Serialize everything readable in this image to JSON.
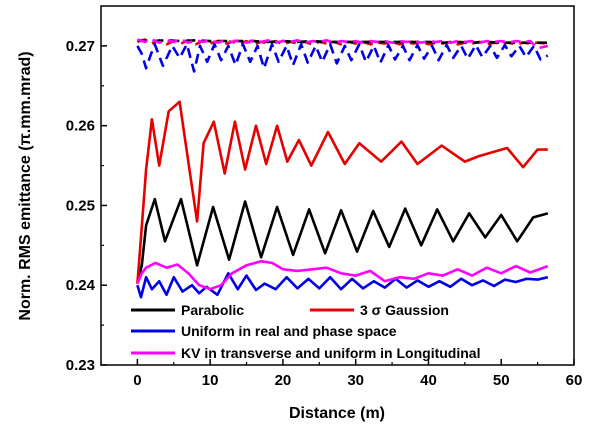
{
  "chart_data": {
    "type": "line",
    "xlabel": "Distance (m)",
    "ylabel": "Norm. RMS emittance (π.mm.mrad)",
    "xlim": [
      -5,
      60
    ],
    "ylim": [
      0.23,
      0.275
    ],
    "xticks": [
      0,
      10,
      20,
      30,
      40,
      50,
      60
    ],
    "yticks": [
      0.23,
      0.24,
      0.25,
      0.26,
      0.27
    ],
    "legend_position": "bottom-left",
    "grid": false,
    "series": [
      {
        "name": "Parabolic",
        "color": "#000000",
        "style": "solid",
        "x": [
          0,
          0.6,
          1.2,
          2.4,
          3.8,
          6.0,
          8.2,
          10.4,
          12.6,
          14.8,
          17.0,
          19.2,
          21.4,
          23.6,
          25.8,
          28.0,
          30.2,
          32.4,
          34.6,
          36.8,
          39.0,
          41.2,
          43.4,
          45.6,
          47.8,
          50.0,
          52.2,
          54.4,
          56.4
        ],
        "y": [
          0.2402,
          0.2425,
          0.2475,
          0.2508,
          0.2455,
          0.2508,
          0.2425,
          0.2498,
          0.2432,
          0.2505,
          0.2435,
          0.2498,
          0.2438,
          0.2495,
          0.244,
          0.2494,
          0.2442,
          0.2493,
          0.2448,
          0.2496,
          0.245,
          0.2495,
          0.2455,
          0.249,
          0.246,
          0.2488,
          0.2455,
          0.2485,
          0.249
        ]
      },
      {
        "name": "3 σ Gaussion",
        "color": "#e60000",
        "style": "solid",
        "x": [
          0,
          0.5,
          1.2,
          2.0,
          3.0,
          4.3,
          5.8,
          7.4,
          8.2,
          9.1,
          10.5,
          12.0,
          13.4,
          14.8,
          16.3,
          17.7,
          19.2,
          20.6,
          22.2,
          23.9,
          26.2,
          28.5,
          30.5,
          33.5,
          36.3,
          38.5,
          41.8,
          45.0,
          47.0,
          50.8,
          53.0,
          55.0,
          56.4
        ],
        "y": [
          0.2402,
          0.246,
          0.2545,
          0.2608,
          0.255,
          0.2618,
          0.263,
          0.253,
          0.248,
          0.2578,
          0.2605,
          0.254,
          0.2605,
          0.2545,
          0.26,
          0.2552,
          0.26,
          0.2555,
          0.2582,
          0.255,
          0.2592,
          0.2552,
          0.2578,
          0.2555,
          0.258,
          0.2552,
          0.2575,
          0.2555,
          0.2562,
          0.2572,
          0.2548,
          0.257,
          0.257
        ]
      },
      {
        "name": "Uniform in real and phase space",
        "color": "#0000e6",
        "style": "solid",
        "x": [
          0,
          0.5,
          1.2,
          2.0,
          3.0,
          4.0,
          5.0,
          6.2,
          7.5,
          8.5,
          9.5,
          11.0,
          12.5,
          13.8,
          15.0,
          16.3,
          17.5,
          19.0,
          20.5,
          22.0,
          23.5,
          25.0,
          26.5,
          28.0,
          29.5,
          31.0,
          32.5,
          34.0,
          35.5,
          37.0,
          38.5,
          40.0,
          41.5,
          43.0,
          44.5,
          46.0,
          47.5,
          49.0,
          50.5,
          52.0,
          53.5,
          55.0,
          56.4
        ],
        "y": [
          0.24,
          0.2385,
          0.241,
          0.2395,
          0.2405,
          0.2388,
          0.241,
          0.2392,
          0.24,
          0.239,
          0.2398,
          0.2388,
          0.2415,
          0.2395,
          0.2412,
          0.2394,
          0.2402,
          0.2395,
          0.241,
          0.2396,
          0.2408,
          0.2396,
          0.241,
          0.2395,
          0.2408,
          0.2396,
          0.2405,
          0.2397,
          0.2408,
          0.2397,
          0.2406,
          0.2398,
          0.2405,
          0.2398,
          0.2408,
          0.24,
          0.2406,
          0.2399,
          0.2407,
          0.2404,
          0.2408,
          0.2407,
          0.241
        ]
      },
      {
        "name": "KV in transverse and uniform in Longitudinal",
        "color": "#ff00ff",
        "style": "solid",
        "x": [
          0,
          0.6,
          1.2,
          2.5,
          4.0,
          5.5,
          7.0,
          8.5,
          10.0,
          11.5,
          13.0,
          15.0,
          17.0,
          18.5,
          20.0,
          22.0,
          24.0,
          26.0,
          28.0,
          30.0,
          32.0,
          34.0,
          36.0,
          38.0,
          40.0,
          42.0,
          44.0,
          46.0,
          48.0,
          50.0,
          52.0,
          54.0,
          56.4
        ],
        "y": [
          0.2402,
          0.2415,
          0.2422,
          0.2428,
          0.2422,
          0.2426,
          0.2415,
          0.24,
          0.2395,
          0.24,
          0.2415,
          0.2425,
          0.243,
          0.2428,
          0.242,
          0.2418,
          0.242,
          0.2422,
          0.2415,
          0.2412,
          0.2418,
          0.2405,
          0.241,
          0.2408,
          0.2415,
          0.2412,
          0.242,
          0.2412,
          0.2422,
          0.2415,
          0.2424,
          0.2416,
          0.2424
        ]
      },
      {
        "name": "",
        "color": "#e60000",
        "style": "dashed",
        "x": [
          0,
          1.0,
          2.0,
          3.0,
          4.0,
          5.0,
          6.0,
          7.0,
          8.0,
          9.0,
          10.0,
          11.0,
          12.0,
          13.0,
          14.0,
          15.0,
          16.0,
          17.0,
          18.0,
          19.0,
          20.0,
          21.0,
          22.0,
          23.0,
          24.0,
          25.0,
          26.0,
          27.0,
          28.0,
          29.0,
          30.0,
          31.0,
          32.0,
          33.0,
          34.0,
          35.0,
          36.0,
          37.0,
          38.0,
          39.0,
          40.0,
          41.0,
          42.0,
          43.0,
          44.0,
          45.0,
          46.0,
          47.0,
          48.0,
          49.0,
          50.0,
          51.0,
          52.0,
          53.0,
          54.0,
          55.0,
          56.4
        ],
        "y": [
          0.2705,
          0.2708,
          0.2703,
          0.2707,
          0.2702,
          0.2706,
          0.2703,
          0.2707,
          0.2702,
          0.2706,
          0.2703,
          0.2706,
          0.2702,
          0.2705,
          0.2703,
          0.2706,
          0.2702,
          0.2705,
          0.2703,
          0.2706,
          0.2702,
          0.2705,
          0.2703,
          0.2705,
          0.2702,
          0.2705,
          0.2703,
          0.2705,
          0.2702,
          0.2705,
          0.2703,
          0.2705,
          0.2702,
          0.2704,
          0.2703,
          0.2705,
          0.2702,
          0.2704,
          0.2703,
          0.2705,
          0.2702,
          0.2704,
          0.2703,
          0.2705,
          0.2702,
          0.2704,
          0.2703,
          0.2705,
          0.2702,
          0.2704,
          0.2703,
          0.2704,
          0.2702,
          0.2704,
          0.2703,
          0.2704,
          0.2703
        ]
      },
      {
        "name": "",
        "color": "#000000",
        "style": "dashed",
        "x": [
          0,
          2.0,
          4.0,
          6.0,
          8.0,
          10.0,
          12.0,
          14.0,
          16.0,
          18.0,
          20.0,
          22.0,
          24.0,
          26.0,
          28.0,
          30.0,
          32.0,
          34.0,
          36.0,
          38.0,
          40.0,
          42.0,
          44.0,
          46.0,
          48.0,
          50.0,
          52.0,
          54.0,
          56.4
        ],
        "y": [
          0.2707,
          0.2706,
          0.2707,
          0.2706,
          0.2707,
          0.2706,
          0.2706,
          0.2706,
          0.2706,
          0.2705,
          0.2706,
          0.2705,
          0.2706,
          0.2705,
          0.2705,
          0.2705,
          0.2705,
          0.2705,
          0.2705,
          0.2705,
          0.2705,
          0.2704,
          0.2705,
          0.2704,
          0.2705,
          0.2704,
          0.2704,
          0.2704,
          0.2704
        ]
      },
      {
        "name": "",
        "color": "#0000e6",
        "style": "dashed",
        "x": [
          0,
          0.6,
          1.2,
          1.8,
          2.4,
          3.5,
          4.8,
          5.8,
          6.8,
          7.8,
          8.6,
          9.6,
          10.6,
          11.5,
          12.5,
          13.5,
          14.5,
          15.5,
          16.5,
          17.4,
          18.5,
          19.4,
          20.5,
          21.4,
          22.5,
          23.4,
          24.5,
          25.4,
          26.5,
          27.4,
          28.5,
          29.4,
          30.5,
          31.4,
          32.5,
          33.4,
          34.5,
          35.4,
          36.5,
          37.4,
          38.5,
          39.4,
          40.5,
          41.4,
          42.5,
          43.4,
          44.5,
          45.4,
          46.5,
          47.4,
          48.5,
          49.4,
          50.5,
          51.4,
          52.5,
          53.4,
          54.5,
          55.4,
          56.4
        ],
        "y": [
          0.27,
          0.269,
          0.2672,
          0.2688,
          0.2702,
          0.2675,
          0.27,
          0.2685,
          0.2702,
          0.2668,
          0.27,
          0.268,
          0.2702,
          0.2682,
          0.27,
          0.2676,
          0.2702,
          0.268,
          0.27,
          0.2672,
          0.2702,
          0.268,
          0.27,
          0.2676,
          0.2702,
          0.2679,
          0.27,
          0.268,
          0.2702,
          0.2678,
          0.27,
          0.2682,
          0.2702,
          0.268,
          0.27,
          0.2679,
          0.2701,
          0.2683,
          0.27,
          0.2682,
          0.2701,
          0.2684,
          0.27,
          0.2682,
          0.2701,
          0.2685,
          0.27,
          0.2684,
          0.2701,
          0.2686,
          0.27,
          0.2685,
          0.2701,
          0.2687,
          0.27,
          0.2686,
          0.27,
          0.2683,
          0.2688
        ]
      },
      {
        "name": "",
        "color": "#ff00ff",
        "style": "dashed",
        "x": [
          0,
          1.0,
          2.0,
          3.0,
          4.0,
          5.0,
          6.0,
          7.0,
          8.0,
          9.0,
          10.0,
          11.0,
          12.0,
          13.0,
          14.0,
          15.0,
          16.0,
          17.0,
          18.0,
          19.0,
          20.0,
          21.0,
          22.0,
          23.0,
          24.0,
          25.0,
          26.0,
          27.0,
          28.0,
          29.0,
          30.0,
          31.0,
          32.0,
          33.0,
          34.0,
          35.0,
          36.0,
          37.0,
          38.0,
          39.0,
          40.0,
          41.0,
          42.0,
          43.0,
          44.0,
          45.0,
          46.0,
          47.0,
          48.0,
          49.0,
          50.0,
          51.0,
          52.0,
          53.0,
          54.0,
          55.0,
          56.4
        ],
        "y": [
          0.2708,
          0.2705,
          0.2708,
          0.2704,
          0.2707,
          0.2705,
          0.2708,
          0.2704,
          0.2707,
          0.2705,
          0.2707,
          0.2704,
          0.2707,
          0.2705,
          0.2707,
          0.2704,
          0.2707,
          0.2705,
          0.2707,
          0.2704,
          0.2706,
          0.2705,
          0.2707,
          0.2704,
          0.2706,
          0.2705,
          0.2707,
          0.2704,
          0.2706,
          0.2705,
          0.2706,
          0.2704,
          0.2706,
          0.2705,
          0.2706,
          0.2704,
          0.2706,
          0.2705,
          0.2706,
          0.2704,
          0.2706,
          0.2705,
          0.2706,
          0.2704,
          0.2706,
          0.2705,
          0.2706,
          0.2704,
          0.2706,
          0.2705,
          0.2706,
          0.2704,
          0.2706,
          0.2705,
          0.2706,
          0.2697,
          0.27
        ]
      }
    ],
    "legend": [
      {
        "label": "Parabolic",
        "color": "#000000"
      },
      {
        "label": "3 σ Gaussion",
        "color": "#e60000"
      },
      {
        "label": "Uniform in real and phase space",
        "color": "#0000e6"
      },
      {
        "label": "KV in transverse and uniform in Longitudinal",
        "color": "#ff00ff"
      }
    ]
  }
}
